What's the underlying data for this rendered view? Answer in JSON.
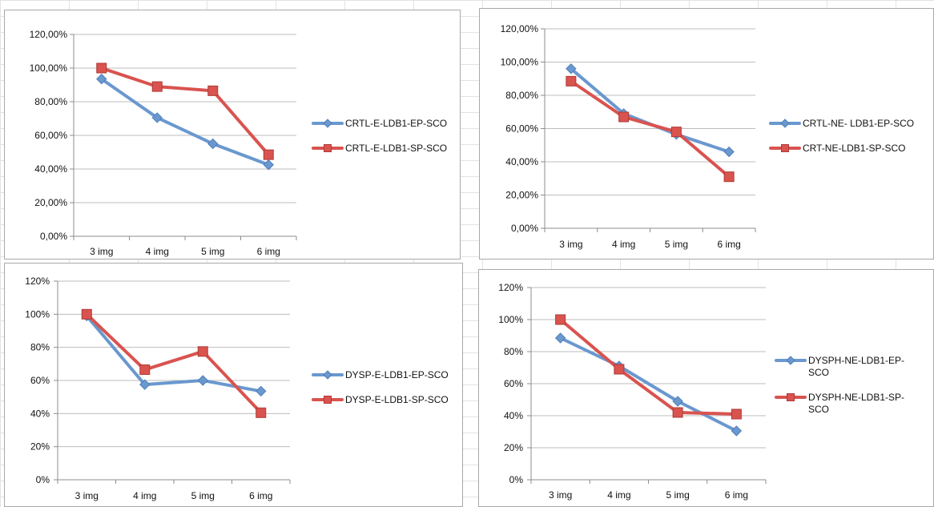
{
  "chart_data": [
    {
      "type": "line",
      "categories": [
        "3 img",
        "4 img",
        "5 img",
        "6 img"
      ],
      "y_ticks": [
        "0,00%",
        "20,00%",
        "40,00%",
        "60,00%",
        "80,00%",
        "100,00%",
        "120,00%"
      ],
      "ylim": [
        0,
        120
      ],
      "grid": true,
      "legend_position": "right",
      "series": [
        {
          "name": "CRTL-E-LDB1-EP-SCO",
          "values": [
            93.5,
            70.5,
            55,
            42.5
          ],
          "color": "#6a98cf",
          "marker": "diamond"
        },
        {
          "name": "CRTL-E-LDB1-SP-SCO",
          "values": [
            100,
            89,
            86.5,
            48.5
          ],
          "color": "#d9534f",
          "marker": "square"
        }
      ]
    },
    {
      "type": "line",
      "categories": [
        "3 img",
        "4 img",
        "5 img",
        "6 img"
      ],
      "y_ticks": [
        "0,00%",
        "20,00%",
        "40,00%",
        "60,00%",
        "80,00%",
        "100,00%",
        "120,00%"
      ],
      "ylim": [
        0,
        120
      ],
      "grid": true,
      "legend_position": "right",
      "series": [
        {
          "name": "CRTL-NE- LDB1-EP-SCO",
          "values": [
            96,
            69,
            56.5,
            46
          ],
          "color": "#6a98cf",
          "marker": "diamond"
        },
        {
          "name": "CRT-NE-LDB1-SP-SCO",
          "values": [
            88.5,
            67,
            58,
            31
          ],
          "color": "#d9534f",
          "marker": "square"
        }
      ]
    },
    {
      "type": "line",
      "categories": [
        "3 img",
        "4 img",
        "5 img",
        "6 img"
      ],
      "y_ticks": [
        "0%",
        "20%",
        "40%",
        "60%",
        "80%",
        "100%",
        "120%"
      ],
      "ylim": [
        0,
        120
      ],
      "grid": true,
      "legend_position": "right",
      "series": [
        {
          "name": "DYSP-E-LDB1-EP-SCO",
          "values": [
            99,
            57.5,
            60,
            53.5
          ],
          "color": "#6a98cf",
          "marker": "diamond"
        },
        {
          "name": "DYSP-E-LDB1-SP-SCO",
          "values": [
            100,
            66.5,
            77.5,
            40.5
          ],
          "color": "#d9534f",
          "marker": "square"
        }
      ]
    },
    {
      "type": "line",
      "categories": [
        "3 img",
        "4 img",
        "5 img",
        "6 img"
      ],
      "y_ticks": [
        "0%",
        "20%",
        "40%",
        "60%",
        "80%",
        "100%",
        "120%"
      ],
      "ylim": [
        0,
        120
      ],
      "grid": true,
      "legend_position": "right",
      "series": [
        {
          "name": "DYSPH-NE-LDB1-EP-SCO",
          "legend_lines": [
            "DYSPH-NE-LDB1-EP-",
            "SCO"
          ],
          "values": [
            88.5,
            71,
            49,
            30.5
          ],
          "color": "#6a98cf",
          "marker": "diamond"
        },
        {
          "name": "DYSPH-NE-LDB1-SP-SCO",
          "legend_lines": [
            "DYSPH-NE-LDB1-SP-",
            "SCO"
          ],
          "values": [
            100,
            69,
            42,
            41
          ],
          "color": "#d9534f",
          "marker": "square"
        }
      ]
    }
  ]
}
